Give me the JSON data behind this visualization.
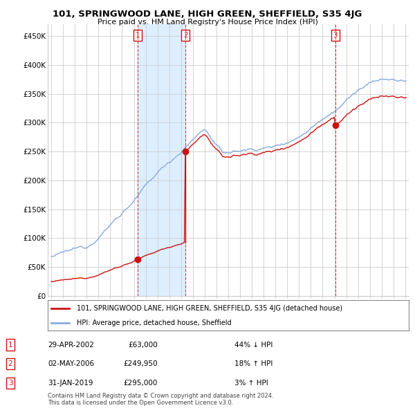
{
  "title": "101, SPRINGWOOD LANE, HIGH GREEN, SHEFFIELD, S35 4JG",
  "subtitle": "Price paid vs. HM Land Registry's House Price Index (HPI)",
  "hpi_color": "#88aadd",
  "price_color": "#cc1111",
  "fill_color": "#ddeeff",
  "background_color": "#ffffff",
  "grid_color": "#cccccc",
  "ylim": [
    0,
    470000
  ],
  "yticks": [
    0,
    50000,
    100000,
    150000,
    200000,
    250000,
    300000,
    350000,
    400000,
    450000
  ],
  "ytick_labels": [
    "£0",
    "£50K",
    "£100K",
    "£150K",
    "£200K",
    "£250K",
    "£300K",
    "£350K",
    "£400K",
    "£450K"
  ],
  "xlim_left": 1994.7,
  "xlim_right": 2025.3,
  "transactions": [
    {
      "num": 1,
      "date": "29-APR-2002",
      "price": 63000,
      "pct": "44%",
      "dir": "↓",
      "year_x": 2002.33
    },
    {
      "num": 2,
      "date": "02-MAY-2006",
      "price": 249950,
      "pct": "18%",
      "dir": "↑",
      "year_x": 2006.38
    },
    {
      "num": 3,
      "date": "31-JAN-2019",
      "price": 295000,
      "pct": "3%",
      "dir": "↑",
      "year_x": 2019.08
    }
  ],
  "legend_line1": "101, SPRINGWOOD LANE, HIGH GREEN, SHEFFIELD, S35 4JG (detached house)",
  "legend_line2": "HPI: Average price, detached house, Sheffield",
  "footer1": "Contains HM Land Registry data © Crown copyright and database right 2024.",
  "footer2": "This data is licensed under the Open Government Licence v3.0.",
  "table_rows": [
    [
      "1",
      "29-APR-2002",
      "£63,000",
      "44% ↓ HPI"
    ],
    [
      "2",
      "02-MAY-2006",
      "£249,950",
      "18% ↑ HPI"
    ],
    [
      "3",
      "31-JAN-2019",
      "£295,000",
      "3% ↑ HPI"
    ]
  ]
}
